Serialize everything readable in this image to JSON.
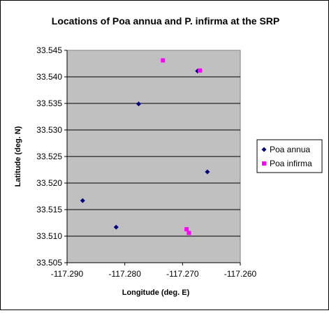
{
  "chart_data": {
    "type": "scatter",
    "title": "Locations of Poa annua and P. infirma at the SRP",
    "xlabel": "Longitude (deg. E)",
    "ylabel": "Latitude (deg. N)",
    "xlim": [
      -117.29,
      -117.26
    ],
    "ylim": [
      33.505,
      33.545
    ],
    "x_ticks": [
      "-117.290",
      "-117.280",
      "-117.270",
      "-117.260"
    ],
    "y_ticks": [
      "33.545",
      "33.540",
      "33.535",
      "33.530",
      "33.525",
      "33.520",
      "33.515",
      "33.510",
      "33.505"
    ],
    "grid": "horizontal",
    "legend_position": "right",
    "plot_background": "#c0c0c0",
    "series": [
      {
        "name": "Poa annua",
        "marker": "diamond",
        "color": "#000080",
        "points": [
          [
            -117.2873,
            33.5167
          ],
          [
            -117.2815,
            33.5117
          ],
          [
            -117.2776,
            33.5349
          ],
          [
            -117.2674,
            33.5411
          ],
          [
            -117.2657,
            33.5221
          ]
        ]
      },
      {
        "name": "Poa infirma",
        "marker": "square",
        "color": "#ff00ff",
        "points": [
          [
            -117.2734,
            33.5431
          ],
          [
            -117.267,
            33.5412
          ],
          [
            -117.2693,
            33.5113
          ],
          [
            -117.2689,
            33.5106
          ]
        ]
      }
    ]
  }
}
